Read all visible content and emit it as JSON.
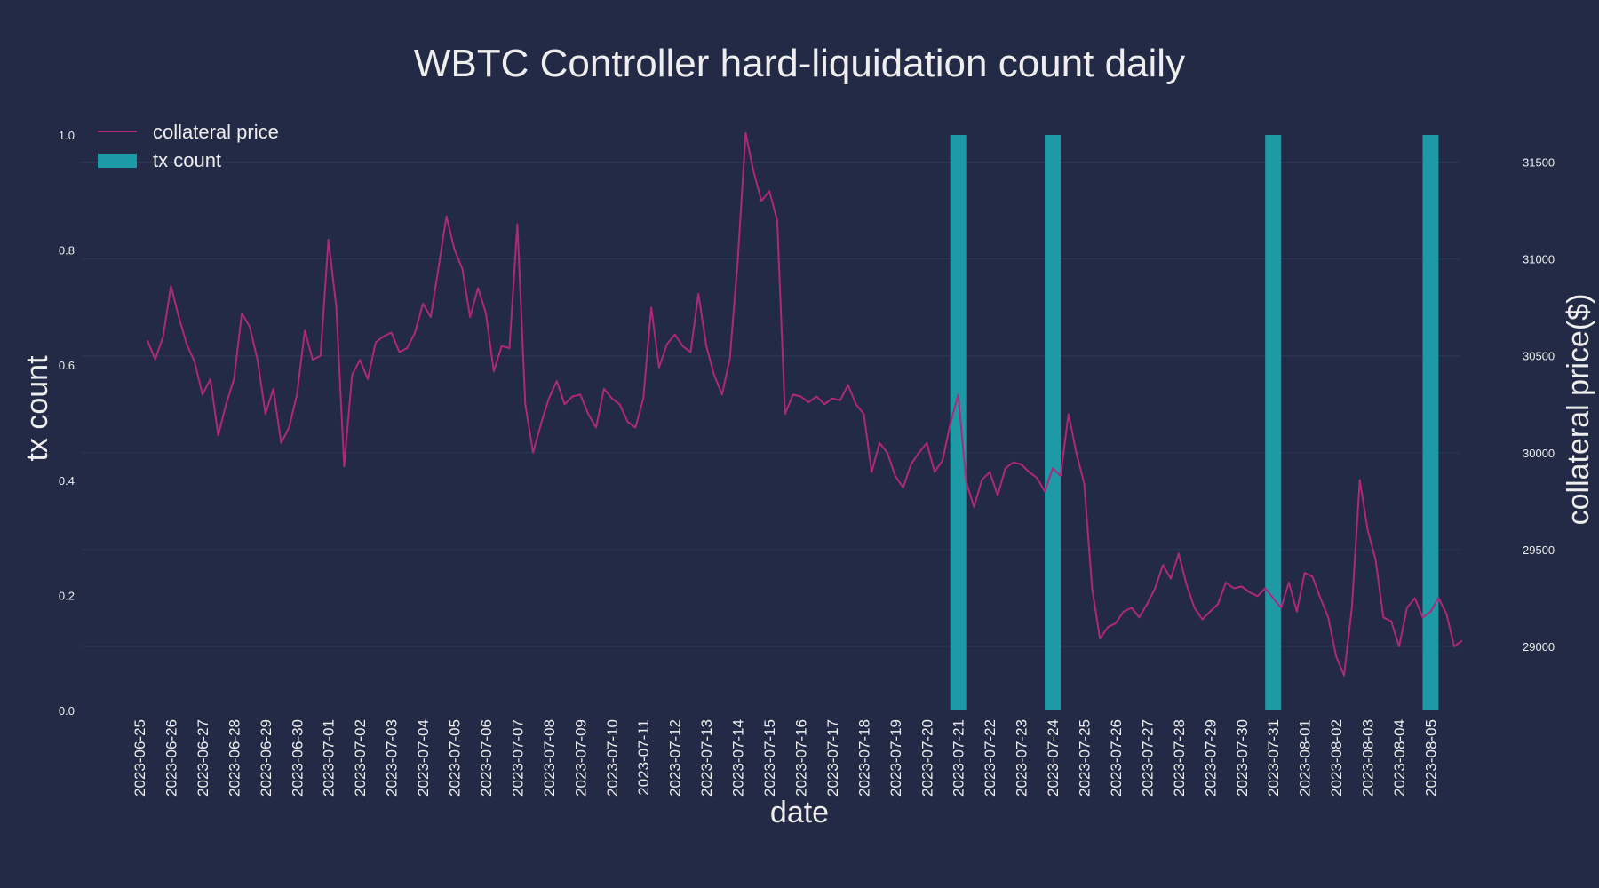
{
  "chart_data": {
    "type": "bar+line",
    "title": "WBTC Controller hard-liquidation count daily",
    "xlabel": "date",
    "ylabel_left": "tx count",
    "ylabel_right": "collateral price($)",
    "ylim_left": [
      0,
      1.0
    ],
    "yticks_left": [
      "0.0",
      "0.2",
      "0.4",
      "0.6",
      "0.8",
      "1.0"
    ],
    "ylim_right": [
      28670,
      31640
    ],
    "yticks_right": [
      "29000",
      "29500",
      "30000",
      "30500",
      "31000",
      "31500"
    ],
    "dates": [
      "2023-06-25",
      "2023-06-26",
      "2023-06-27",
      "2023-06-28",
      "2023-06-29",
      "2023-06-30",
      "2023-07-01",
      "2023-07-02",
      "2023-07-03",
      "2023-07-04",
      "2023-07-05",
      "2023-07-06",
      "2023-07-07",
      "2023-07-08",
      "2023-07-09",
      "2023-07-10",
      "2023-07-11",
      "2023-07-12",
      "2023-07-13",
      "2023-07-14",
      "2023-07-15",
      "2023-07-16",
      "2023-07-17",
      "2023-07-18",
      "2023-07-19",
      "2023-07-20",
      "2023-07-21",
      "2023-07-22",
      "2023-07-23",
      "2023-07-24",
      "2023-07-25",
      "2023-07-26",
      "2023-07-27",
      "2023-07-28",
      "2023-07-29",
      "2023-07-30",
      "2023-07-31",
      "2023-08-01",
      "2023-08-02",
      "2023-08-03",
      "2023-08-04",
      "2023-08-05"
    ],
    "series": [
      {
        "name": "tx count",
        "kind": "bar",
        "color": "#1d9aa6",
        "points": [
          {
            "x": "2023-07-21",
            "y": 1
          },
          {
            "x": "2023-07-24",
            "y": 1
          },
          {
            "x": "2023-07-31",
            "y": 1
          },
          {
            "x": "2023-08-05",
            "y": 1
          }
        ]
      },
      {
        "name": "collateral price",
        "kind": "line",
        "color": "#b0287a",
        "axis": "right",
        "points": [
          [
            "2023-06-25 06:00",
            30580
          ],
          [
            "2023-06-25 12:00",
            30480
          ],
          [
            "2023-06-25 18:00",
            30600
          ],
          [
            "2023-06-26 00:00",
            30860
          ],
          [
            "2023-06-26 06:00",
            30700
          ],
          [
            "2023-06-26 12:00",
            30560
          ],
          [
            "2023-06-26 18:00",
            30470
          ],
          [
            "2023-06-27 00:00",
            30300
          ],
          [
            "2023-06-27 06:00",
            30380
          ],
          [
            "2023-06-27 12:00",
            30090
          ],
          [
            "2023-06-27 18:00",
            30250
          ],
          [
            "2023-06-28 00:00",
            30380
          ],
          [
            "2023-06-28 06:00",
            30720
          ],
          [
            "2023-06-28 12:00",
            30650
          ],
          [
            "2023-06-28 18:00",
            30480
          ],
          [
            "2023-06-29 00:00",
            30200
          ],
          [
            "2023-06-29 06:00",
            30330
          ],
          [
            "2023-06-29 12:00",
            30050
          ],
          [
            "2023-06-29 18:00",
            30130
          ],
          [
            "2023-06-30 00:00",
            30300
          ],
          [
            "2023-06-30 06:00",
            30630
          ],
          [
            "2023-06-30 12:00",
            30480
          ],
          [
            "2023-06-30 18:00",
            30500
          ],
          [
            "2023-07-01 00:00",
            31100
          ],
          [
            "2023-07-01 06:00",
            30750
          ],
          [
            "2023-07-01 12:00",
            29930
          ],
          [
            "2023-07-01 18:00",
            30400
          ],
          [
            "2023-07-02 00:00",
            30480
          ],
          [
            "2023-07-02 06:00",
            30380
          ],
          [
            "2023-07-02 12:00",
            30570
          ],
          [
            "2023-07-02 18:00",
            30600
          ],
          [
            "2023-07-03 00:00",
            30620
          ],
          [
            "2023-07-03 06:00",
            30520
          ],
          [
            "2023-07-03 12:00",
            30540
          ],
          [
            "2023-07-03 18:00",
            30620
          ],
          [
            "2023-07-04 00:00",
            30770
          ],
          [
            "2023-07-04 06:00",
            30700
          ],
          [
            "2023-07-04 12:00",
            30960
          ],
          [
            "2023-07-04 18:00",
            31220
          ],
          [
            "2023-07-05 00:00",
            31050
          ],
          [
            "2023-07-05 06:00",
            30950
          ],
          [
            "2023-07-05 12:00",
            30700
          ],
          [
            "2023-07-05 18:00",
            30850
          ],
          [
            "2023-07-06 00:00",
            30720
          ],
          [
            "2023-07-06 06:00",
            30420
          ],
          [
            "2023-07-06 12:00",
            30550
          ],
          [
            "2023-07-06 18:00",
            30540
          ],
          [
            "2023-07-07 00:00",
            31180
          ],
          [
            "2023-07-07 06:00",
            30250
          ],
          [
            "2023-07-07 12:00",
            30000
          ],
          [
            "2023-07-07 18:00",
            30150
          ],
          [
            "2023-07-08 00:00",
            30280
          ],
          [
            "2023-07-08 06:00",
            30370
          ],
          [
            "2023-07-08 12:00",
            30250
          ],
          [
            "2023-07-08 18:00",
            30290
          ],
          [
            "2023-07-09 00:00",
            30300
          ],
          [
            "2023-07-09 06:00",
            30200
          ],
          [
            "2023-07-09 12:00",
            30130
          ],
          [
            "2023-07-09 18:00",
            30330
          ],
          [
            "2023-07-10 00:00",
            30280
          ],
          [
            "2023-07-10 06:00",
            30250
          ],
          [
            "2023-07-10 12:00",
            30160
          ],
          [
            "2023-07-10 18:00",
            30130
          ],
          [
            "2023-07-11 00:00",
            30280
          ],
          [
            "2023-07-11 06:00",
            30750
          ],
          [
            "2023-07-11 12:00",
            30440
          ],
          [
            "2023-07-11 18:00",
            30560
          ],
          [
            "2023-07-12 00:00",
            30610
          ],
          [
            "2023-07-12 06:00",
            30550
          ],
          [
            "2023-07-12 12:00",
            30520
          ],
          [
            "2023-07-12 18:00",
            30820
          ],
          [
            "2023-07-13 00:00",
            30550
          ],
          [
            "2023-07-13 06:00",
            30400
          ],
          [
            "2023-07-13 12:00",
            30300
          ],
          [
            "2023-07-13 18:00",
            30490
          ],
          [
            "2023-07-14 00:00",
            31000
          ],
          [
            "2023-07-14 06:00",
            31650
          ],
          [
            "2023-07-14 12:00",
            31450
          ],
          [
            "2023-07-14 18:00",
            31300
          ],
          [
            "2023-07-15 00:00",
            31350
          ],
          [
            "2023-07-15 06:00",
            31200
          ],
          [
            "2023-07-15 12:00",
            30200
          ],
          [
            "2023-07-15 18:00",
            30300
          ],
          [
            "2023-07-16 00:00",
            30290
          ],
          [
            "2023-07-16 06:00",
            30260
          ],
          [
            "2023-07-16 12:00",
            30290
          ],
          [
            "2023-07-16 18:00",
            30250
          ],
          [
            "2023-07-17 00:00",
            30280
          ],
          [
            "2023-07-17 06:00",
            30270
          ],
          [
            "2023-07-17 12:00",
            30350
          ],
          [
            "2023-07-17 18:00",
            30250
          ],
          [
            "2023-07-18 00:00",
            30200
          ],
          [
            "2023-07-18 06:00",
            29900
          ],
          [
            "2023-07-18 12:00",
            30050
          ],
          [
            "2023-07-18 18:00",
            30000
          ],
          [
            "2023-07-19 00:00",
            29880
          ],
          [
            "2023-07-19 06:00",
            29820
          ],
          [
            "2023-07-19 12:00",
            29940
          ],
          [
            "2023-07-19 18:00",
            30000
          ],
          [
            "2023-07-20 00:00",
            30050
          ],
          [
            "2023-07-20 06:00",
            29900
          ],
          [
            "2023-07-20 12:00",
            29960
          ],
          [
            "2023-07-20 18:00",
            30150
          ],
          [
            "2023-07-21 00:00",
            30300
          ],
          [
            "2023-07-21 06:00",
            29850
          ],
          [
            "2023-07-21 12:00",
            29720
          ],
          [
            "2023-07-21 18:00",
            29860
          ],
          [
            "2023-07-22 00:00",
            29900
          ],
          [
            "2023-07-22 06:00",
            29780
          ],
          [
            "2023-07-22 12:00",
            29920
          ],
          [
            "2023-07-22 18:00",
            29950
          ],
          [
            "2023-07-23 00:00",
            29940
          ],
          [
            "2023-07-23 06:00",
            29900
          ],
          [
            "2023-07-23 12:00",
            29870
          ],
          [
            "2023-07-23 18:00",
            29800
          ],
          [
            "2023-07-24 00:00",
            29920
          ],
          [
            "2023-07-24 06:00",
            29880
          ],
          [
            "2023-07-24 12:00",
            30200
          ],
          [
            "2023-07-24 18:00",
            30000
          ],
          [
            "2023-07-25 00:00",
            29840
          ],
          [
            "2023-07-25 06:00",
            29300
          ],
          [
            "2023-07-25 12:00",
            29040
          ],
          [
            "2023-07-25 18:00",
            29100
          ],
          [
            "2023-07-26 00:00",
            29120
          ],
          [
            "2023-07-26 06:00",
            29180
          ],
          [
            "2023-07-26 12:00",
            29200
          ],
          [
            "2023-07-26 18:00",
            29150
          ],
          [
            "2023-07-27 00:00",
            29220
          ],
          [
            "2023-07-27 06:00",
            29300
          ],
          [
            "2023-07-27 12:00",
            29420
          ],
          [
            "2023-07-27 18:00",
            29350
          ],
          [
            "2023-07-28 00:00",
            29480
          ],
          [
            "2023-07-28 06:00",
            29320
          ],
          [
            "2023-07-28 12:00",
            29200
          ],
          [
            "2023-07-28 18:00",
            29140
          ],
          [
            "2023-07-29 00:00",
            29180
          ],
          [
            "2023-07-29 06:00",
            29220
          ],
          [
            "2023-07-29 12:00",
            29330
          ],
          [
            "2023-07-29 18:00",
            29300
          ],
          [
            "2023-07-30 00:00",
            29310
          ],
          [
            "2023-07-30 06:00",
            29280
          ],
          [
            "2023-07-30 12:00",
            29260
          ],
          [
            "2023-07-30 18:00",
            29300
          ],
          [
            "2023-07-31 00:00",
            29250
          ],
          [
            "2023-07-31 06:00",
            29200
          ],
          [
            "2023-07-31 12:00",
            29330
          ],
          [
            "2023-07-31 18:00",
            29180
          ],
          [
            "2023-08-01 00:00",
            29380
          ],
          [
            "2023-08-01 06:00",
            29360
          ],
          [
            "2023-08-01 12:00",
            29250
          ],
          [
            "2023-08-01 18:00",
            29150
          ],
          [
            "2023-08-02 00:00",
            28950
          ],
          [
            "2023-08-02 06:00",
            28850
          ],
          [
            "2023-08-02 12:00",
            29200
          ],
          [
            "2023-08-02 18:00",
            29860
          ],
          [
            "2023-08-03 00:00",
            29600
          ],
          [
            "2023-08-03 06:00",
            29450
          ],
          [
            "2023-08-03 12:00",
            29150
          ],
          [
            "2023-08-03 18:00",
            29130
          ],
          [
            "2023-08-04 00:00",
            29000
          ],
          [
            "2023-08-04 06:00",
            29200
          ],
          [
            "2023-08-04 12:00",
            29250
          ],
          [
            "2023-08-04 18:00",
            29150
          ],
          [
            "2023-08-05 00:00",
            29180
          ],
          [
            "2023-08-05 06:00",
            29250
          ],
          [
            "2023-08-05 12:00",
            29170
          ],
          [
            "2023-08-05 18:00",
            29000
          ],
          [
            "2023-08-06 00:00",
            29030
          ]
        ]
      }
    ],
    "legend": {
      "placement": "top-left",
      "entries": [
        "collateral price",
        "tx count"
      ]
    },
    "grid": true
  },
  "colors": {
    "background": "#222a45",
    "line": "#b0287a",
    "bar": "#1d9aa6",
    "grid": "#2f3859",
    "text": "#eeeeee"
  }
}
